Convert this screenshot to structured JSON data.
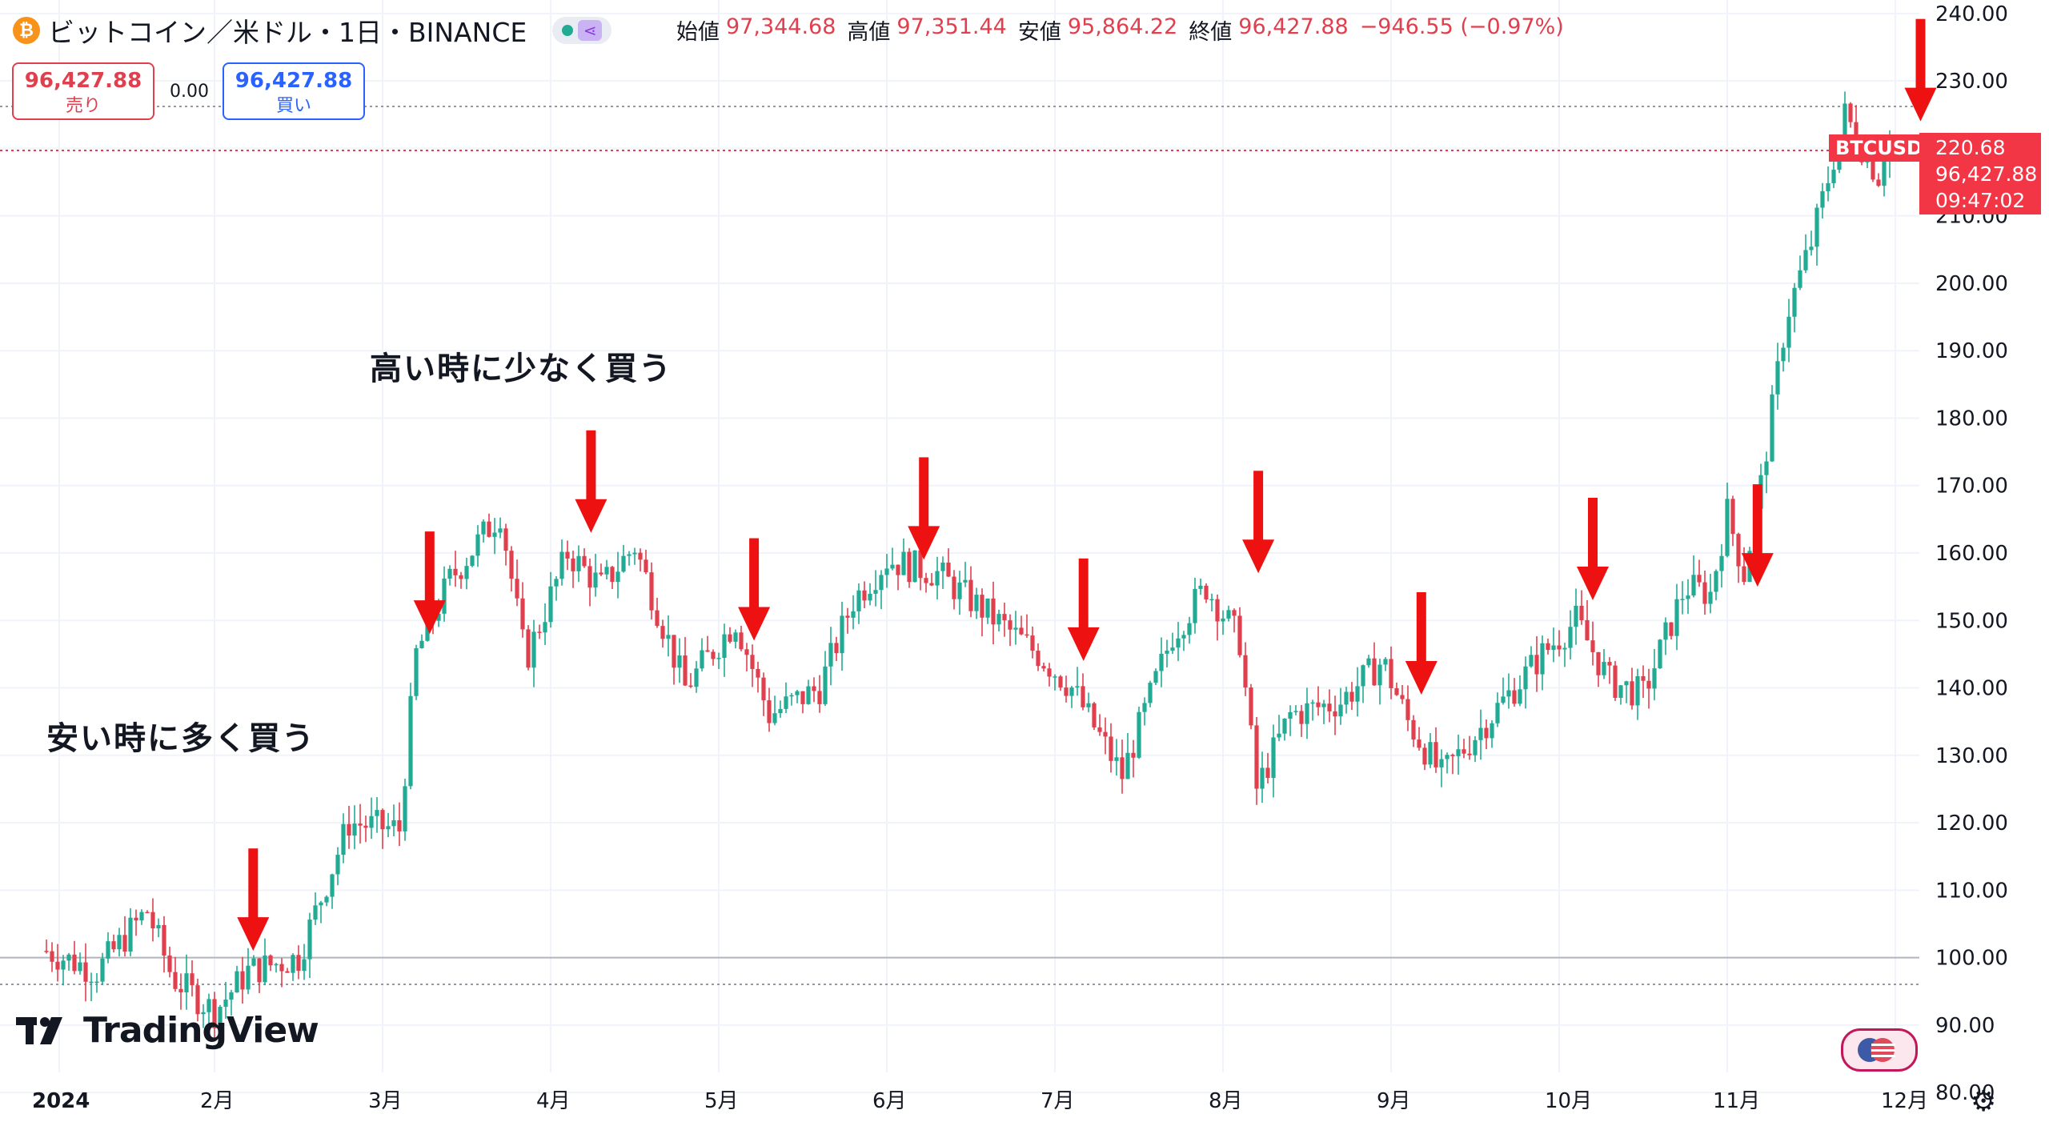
{
  "header": {
    "coin_icon": "bitcoin-icon",
    "symbol": "ビットコイン／米ドル・1日・BINANCE",
    "ohlc": {
      "open_label": "始値",
      "open": "97,344.68",
      "high_label": "高値",
      "high": "97,351.44",
      "low_label": "安値",
      "low": "95,864.22",
      "close_label": "終値",
      "close": "96,427.88",
      "change": "−946.55 (−0.97%)"
    }
  },
  "trade": {
    "sell_price": "96,427.88",
    "sell_label": "売り",
    "spread": "0.00",
    "buy_price": "96,427.88",
    "buy_label": "買い"
  },
  "annotations": {
    "low_text": "安い時に多く買う",
    "high_text": "高い時に少なく買う"
  },
  "logo": {
    "text": "TradingView"
  },
  "price_tag": {
    "symbol": "BTCUSD",
    "value": "220.68",
    "price": "96,427.88",
    "countdown": "09:47:02"
  },
  "chart_data": {
    "type": "candlestick",
    "title": "ビットコイン／米ドル・1日・BINANCE",
    "yticks": [
      "240.00",
      "230.00",
      "220.00",
      "210.00",
      "200.00",
      "190.00",
      "180.00",
      "170.00",
      "160.00",
      "150.00",
      "140.00",
      "130.00",
      "120.00",
      "110.00",
      "100.00",
      "90.00",
      "80.00"
    ],
    "xticks": [
      "2024",
      "2月",
      "3月",
      "4月",
      "5月",
      "6月",
      "7月",
      "8月",
      "9月",
      "10月",
      "11月",
      "12月"
    ],
    "ylim": [
      78,
      242
    ],
    "xlim": [
      0,
      11.35
    ],
    "colors": {
      "up": "#22ab94",
      "down": "#e0404e",
      "arrow": "#ee1111"
    },
    "reference_line": 100,
    "key_points": [
      {
        "x": 0.0,
        "y": 101
      },
      {
        "x": 0.3,
        "y": 98
      },
      {
        "x": 0.6,
        "y": 107
      },
      {
        "x": 0.75,
        "y": 97
      },
      {
        "x": 1.0,
        "y": 92
      },
      {
        "x": 1.2,
        "y": 98
      },
      {
        "x": 1.5,
        "y": 100
      },
      {
        "x": 1.8,
        "y": 120
      },
      {
        "x": 2.1,
        "y": 119
      },
      {
        "x": 2.2,
        "y": 145
      },
      {
        "x": 2.4,
        "y": 156
      },
      {
        "x": 2.7,
        "y": 166
      },
      {
        "x": 2.85,
        "y": 144
      },
      {
        "x": 3.1,
        "y": 160
      },
      {
        "x": 3.3,
        "y": 155
      },
      {
        "x": 3.5,
        "y": 161
      },
      {
        "x": 3.8,
        "y": 140
      },
      {
        "x": 4.1,
        "y": 150
      },
      {
        "x": 4.3,
        "y": 136
      },
      {
        "x": 4.6,
        "y": 140
      },
      {
        "x": 4.8,
        "y": 153
      },
      {
        "x": 5.0,
        "y": 159
      },
      {
        "x": 5.3,
        "y": 157
      },
      {
        "x": 5.6,
        "y": 151
      },
      {
        "x": 5.9,
        "y": 145
      },
      {
        "x": 6.1,
        "y": 140
      },
      {
        "x": 6.4,
        "y": 127
      },
      {
        "x": 6.7,
        "y": 148
      },
      {
        "x": 6.9,
        "y": 155
      },
      {
        "x": 7.1,
        "y": 147
      },
      {
        "x": 7.2,
        "y": 125
      },
      {
        "x": 7.4,
        "y": 136
      },
      {
        "x": 7.7,
        "y": 138
      },
      {
        "x": 7.95,
        "y": 144
      },
      {
        "x": 8.1,
        "y": 135
      },
      {
        "x": 8.3,
        "y": 127
      },
      {
        "x": 8.6,
        "y": 136
      },
      {
        "x": 8.9,
        "y": 145
      },
      {
        "x": 9.1,
        "y": 150
      },
      {
        "x": 9.3,
        "y": 141
      },
      {
        "x": 9.5,
        "y": 139
      },
      {
        "x": 9.75,
        "y": 155
      },
      {
        "x": 9.9,
        "y": 154
      },
      {
        "x": 10.0,
        "y": 166
      },
      {
        "x": 10.1,
        "y": 157
      },
      {
        "x": 10.2,
        "y": 170
      },
      {
        "x": 10.35,
        "y": 195
      },
      {
        "x": 10.5,
        "y": 206
      },
      {
        "x": 10.7,
        "y": 225
      },
      {
        "x": 10.85,
        "y": 218
      },
      {
        "x": 10.9,
        "y": 216
      },
      {
        "x": 10.95,
        "y": 222
      }
    ],
    "arrows": [
      {
        "x": 1.23,
        "y": 101
      },
      {
        "x": 2.28,
        "y": 148
      },
      {
        "x": 3.24,
        "y": 163
      },
      {
        "x": 4.21,
        "y": 147
      },
      {
        "x": 5.22,
        "y": 159
      },
      {
        "x": 6.17,
        "y": 144
      },
      {
        "x": 7.21,
        "y": 157
      },
      {
        "x": 8.18,
        "y": 139
      },
      {
        "x": 9.2,
        "y": 153
      },
      {
        "x": 10.18,
        "y": 155
      },
      {
        "x": 11.15,
        "y": 224
      }
    ]
  }
}
